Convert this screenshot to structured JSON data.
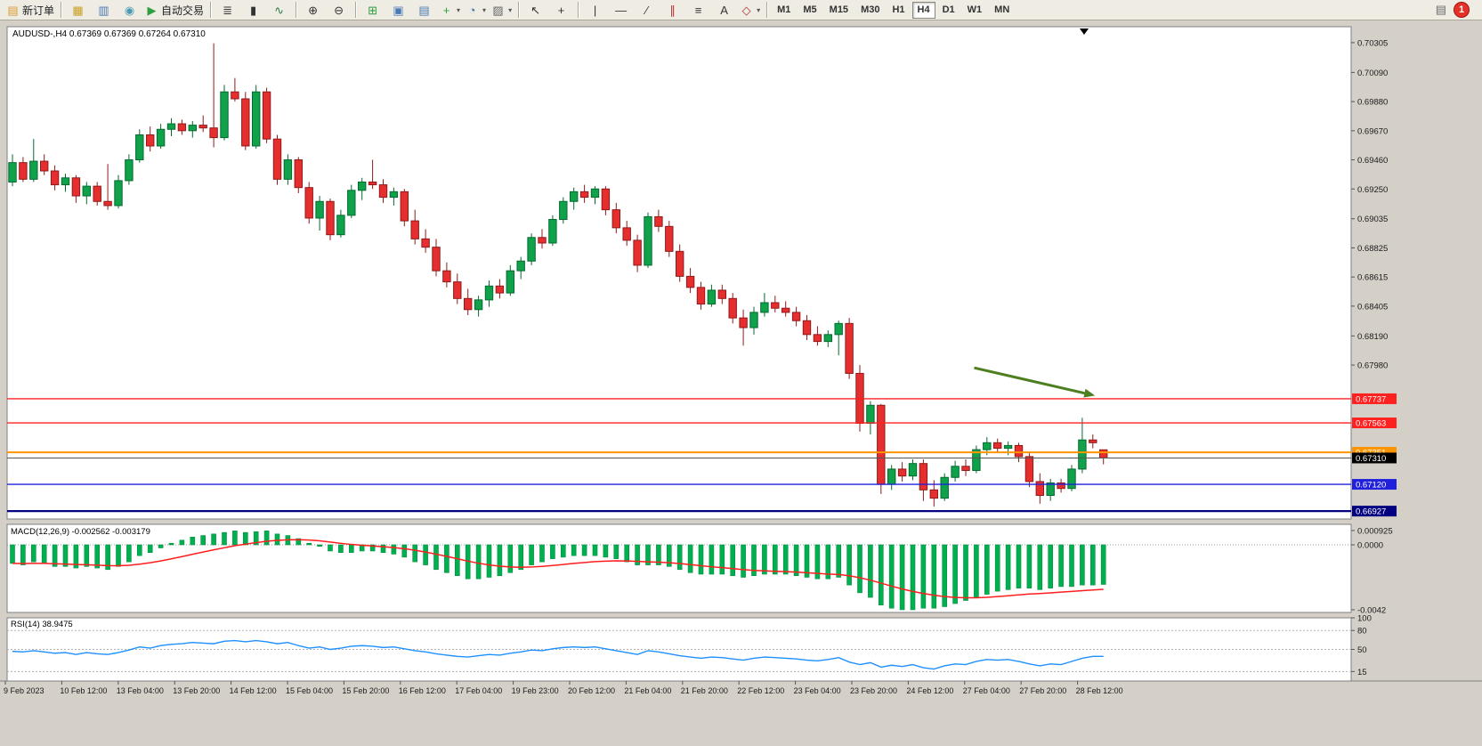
{
  "window": {
    "bg": "#d4d0c8",
    "toolbar_bg": "#efece4"
  },
  "toolbar": {
    "items": [
      {
        "name": "new-order-button",
        "glyph": "▤",
        "glyph_color": "#d89b2c",
        "label": "新订单"
      },
      {
        "sep": true
      },
      {
        "name": "new-chart-button",
        "glyph": "▦",
        "glyph_color": "#c8a020"
      },
      {
        "name": "profiles-button",
        "glyph": "▥",
        "glyph_color": "#4a7ab5"
      },
      {
        "name": "navigator-button",
        "glyph": "◉",
        "glyph_color": "#4a9ab5"
      },
      {
        "name": "autotrading-button",
        "glyph": "▶",
        "glyph_color": "#2e9e3f",
        "label": "自动交易"
      },
      {
        "sep": true
      },
      {
        "name": "bar-chart-button",
        "glyph": "≣",
        "glyph_color": "#333333"
      },
      {
        "name": "candlestick-chart-button",
        "glyph": "▮",
        "glyph_color": "#333333"
      },
      {
        "name": "line-chart-button",
        "glyph": "∿",
        "glyph_color": "#2d7d46"
      },
      {
        "sep": true
      },
      {
        "name": "zoom-in-button",
        "glyph": "⊕",
        "glyph_color": "#333333"
      },
      {
        "name": "zoom-out-button",
        "glyph": "⊖",
        "glyph_color": "#333333"
      },
      {
        "sep": true
      },
      {
        "name": "tile-windows-button",
        "glyph": "⊞",
        "glyph_color": "#2e9e3f"
      },
      {
        "name": "cascade-windows-button",
        "glyph": "▣",
        "glyph_color": "#4a7ab5"
      },
      {
        "name": "arrange-windows-button",
        "glyph": "▤",
        "glyph_color": "#4a7ab5"
      },
      {
        "name": "indicators-button",
        "glyph": "+",
        "glyph_color": "#2e9e3f",
        "dropdown": true
      },
      {
        "name": "periods-button",
        "glyph": "◔",
        "glyph_color": "#3a6ea5",
        "dropdown": true
      },
      {
        "name": "templates-button",
        "glyph": "▨",
        "glyph_color": "#666666",
        "dropdown": true
      },
      {
        "sep": true
      },
      {
        "name": "cursor-button",
        "glyph": "↖",
        "glyph_color": "#333333"
      },
      {
        "name": "crosshair-button",
        "glyph": "+",
        "glyph_color": "#333333"
      },
      {
        "sep": true
      },
      {
        "name": "vertical-line-button",
        "glyph": "|",
        "glyph_color": "#333333"
      },
      {
        "name": "horizontal-line-button",
        "glyph": "—",
        "glyph_color": "#333333"
      },
      {
        "name": "trendline-button",
        "glyph": "∕",
        "glyph_color": "#333333"
      },
      {
        "name": "channel-button",
        "glyph": "∥",
        "glyph_color": "#b03030"
      },
      {
        "name": "fibonacci-button",
        "glyph": "≡",
        "glyph_color": "#333333"
      },
      {
        "name": "text-button",
        "glyph": "A",
        "glyph_color": "#333333"
      },
      {
        "name": "arrows-button",
        "glyph": "◇",
        "glyph_color": "#b03030",
        "dropdown": true
      },
      {
        "sep": true
      }
    ],
    "timeframes": [
      "M1",
      "M5",
      "M15",
      "M30",
      "H1",
      "H4",
      "D1",
      "W1",
      "MN"
    ],
    "active_timeframe": "H4",
    "right_icon_glyph": "▤",
    "notification_count": "1"
  },
  "chart": {
    "header": "AUDUSD-,H4  0.67369 0.67369 0.67264 0.67310",
    "macd_label": "MACD(12,26,9) -0.002562 -0.003179",
    "rsi_label": "RSI(14) 38.9475"
  },
  "chart_data": {
    "type": "candlestick",
    "symbol": "AUDUSD-",
    "timeframe": "H4",
    "ohlc_current": {
      "open": 0.67369,
      "high": 0.67369,
      "low": 0.67264,
      "close": 0.6731
    },
    "ylim": [
      0.6687,
      0.7042
    ],
    "price_axis_ticks": [
      "0.70305",
      "0.70090",
      "0.69880",
      "0.69670",
      "0.69460",
      "0.69250",
      "0.69035",
      "0.68825",
      "0.68615",
      "0.68405",
      "0.68190",
      "0.67980"
    ],
    "hlines": [
      {
        "price": 0.67737,
        "label": "0.67737",
        "color": "#ff2020",
        "box_bg": "#ff2020",
        "width": 1.4
      },
      {
        "price": 0.67563,
        "label": "0.67563",
        "color": "#ff2020",
        "box_bg": "#ff2020",
        "width": 1.4
      },
      {
        "price": 0.67351,
        "label": "0.67351",
        "color": "#ff9400",
        "box_bg": "#ff9400",
        "width": 2
      },
      {
        "price": 0.6731,
        "label": "0.67310",
        "color": "#555555",
        "box_bg": "#000000",
        "width": 1
      },
      {
        "price": 0.6712,
        "label": "0.67120",
        "color": "#2020dd",
        "box_bg": "#2020dd",
        "width": 1.4
      },
      {
        "price": 0.66927,
        "label": "0.66927",
        "color": "#000080",
        "box_bg": "#000080",
        "width": 2.2
      }
    ],
    "candles": [
      [
        0.693,
        0.695,
        0.6927,
        0.6944
      ],
      [
        0.6944,
        0.6948,
        0.693,
        0.6932
      ],
      [
        0.6932,
        0.6961,
        0.693,
        0.6945
      ],
      [
        0.6945,
        0.695,
        0.6935,
        0.6938
      ],
      [
        0.6938,
        0.6942,
        0.6924,
        0.6928
      ],
      [
        0.6928,
        0.6936,
        0.6923,
        0.6933
      ],
      [
        0.6933,
        0.6935,
        0.6915,
        0.692
      ],
      [
        0.692,
        0.693,
        0.6914,
        0.6927
      ],
      [
        0.6927,
        0.693,
        0.6913,
        0.6916
      ],
      [
        0.6916,
        0.6943,
        0.691,
        0.6913
      ],
      [
        0.6913,
        0.6935,
        0.6911,
        0.6931
      ],
      [
        0.6931,
        0.695,
        0.6928,
        0.6946
      ],
      [
        0.6946,
        0.6968,
        0.6944,
        0.6964
      ],
      [
        0.6964,
        0.697,
        0.6952,
        0.6956
      ],
      [
        0.6956,
        0.6972,
        0.6954,
        0.6968
      ],
      [
        0.6968,
        0.6976,
        0.6963,
        0.6972
      ],
      [
        0.6972,
        0.6975,
        0.6964,
        0.6967
      ],
      [
        0.6967,
        0.6974,
        0.6962,
        0.6971
      ],
      [
        0.6971,
        0.6978,
        0.6966,
        0.6969
      ],
      [
        0.6969,
        0.703,
        0.6955,
        0.6962
      ],
      [
        0.6962,
        0.7,
        0.696,
        0.6995
      ],
      [
        0.6995,
        0.7005,
        0.6988,
        0.699
      ],
      [
        0.699,
        0.6995,
        0.6953,
        0.6956
      ],
      [
        0.6956,
        0.7,
        0.6954,
        0.6995
      ],
      [
        0.6995,
        0.6998,
        0.6958,
        0.6961
      ],
      [
        0.6961,
        0.6964,
        0.6928,
        0.6932
      ],
      [
        0.6932,
        0.695,
        0.6928,
        0.6946
      ],
      [
        0.6946,
        0.6948,
        0.6922,
        0.6926
      ],
      [
        0.6926,
        0.693,
        0.69,
        0.6904
      ],
      [
        0.6904,
        0.692,
        0.6895,
        0.6916
      ],
      [
        0.6916,
        0.6918,
        0.6888,
        0.6892
      ],
      [
        0.6892,
        0.691,
        0.689,
        0.6906
      ],
      [
        0.6906,
        0.6928,
        0.6904,
        0.6924
      ],
      [
        0.6924,
        0.6933,
        0.6917,
        0.693
      ],
      [
        0.693,
        0.6946,
        0.6925,
        0.6928
      ],
      [
        0.6928,
        0.6932,
        0.6915,
        0.6919
      ],
      [
        0.6919,
        0.6926,
        0.6913,
        0.6923
      ],
      [
        0.6923,
        0.6925,
        0.6898,
        0.6902
      ],
      [
        0.6902,
        0.691,
        0.6885,
        0.6889
      ],
      [
        0.6889,
        0.6896,
        0.6879,
        0.6883
      ],
      [
        0.6883,
        0.6889,
        0.6862,
        0.6866
      ],
      [
        0.6866,
        0.6872,
        0.6854,
        0.6858
      ],
      [
        0.6858,
        0.6864,
        0.6842,
        0.6846
      ],
      [
        0.6846,
        0.6853,
        0.6834,
        0.6838
      ],
      [
        0.6838,
        0.6848,
        0.6833,
        0.6845
      ],
      [
        0.6845,
        0.6859,
        0.684,
        0.6855
      ],
      [
        0.6855,
        0.686,
        0.6846,
        0.685
      ],
      [
        0.685,
        0.687,
        0.6848,
        0.6866
      ],
      [
        0.6866,
        0.6876,
        0.686,
        0.6873
      ],
      [
        0.6873,
        0.6893,
        0.687,
        0.689
      ],
      [
        0.689,
        0.6896,
        0.6882,
        0.6886
      ],
      [
        0.6886,
        0.6906,
        0.6884,
        0.6903
      ],
      [
        0.6903,
        0.6919,
        0.69,
        0.6916
      ],
      [
        0.6916,
        0.6926,
        0.691,
        0.6923
      ],
      [
        0.6923,
        0.6928,
        0.6915,
        0.6919
      ],
      [
        0.6919,
        0.6927,
        0.6914,
        0.6925
      ],
      [
        0.6925,
        0.6927,
        0.6906,
        0.691
      ],
      [
        0.691,
        0.6915,
        0.6893,
        0.6897
      ],
      [
        0.6897,
        0.6902,
        0.6884,
        0.6888
      ],
      [
        0.6888,
        0.6892,
        0.6865,
        0.687
      ],
      [
        0.687,
        0.6908,
        0.6868,
        0.6905
      ],
      [
        0.6905,
        0.691,
        0.6894,
        0.6898
      ],
      [
        0.6898,
        0.6902,
        0.6876,
        0.688
      ],
      [
        0.688,
        0.6885,
        0.6858,
        0.6862
      ],
      [
        0.6862,
        0.6868,
        0.685,
        0.6854
      ],
      [
        0.6854,
        0.6858,
        0.6838,
        0.6842
      ],
      [
        0.6842,
        0.6856,
        0.684,
        0.6852
      ],
      [
        0.6852,
        0.6856,
        0.6842,
        0.6846
      ],
      [
        0.6846,
        0.685,
        0.6828,
        0.6832
      ],
      [
        0.6832,
        0.6838,
        0.6812,
        0.6825
      ],
      [
        0.6825,
        0.684,
        0.682,
        0.6836
      ],
      [
        0.6836,
        0.685,
        0.6833,
        0.6843
      ],
      [
        0.6843,
        0.6848,
        0.6836,
        0.6839
      ],
      [
        0.6839,
        0.6844,
        0.6833,
        0.6836
      ],
      [
        0.6836,
        0.684,
        0.6826,
        0.683
      ],
      [
        0.683,
        0.6834,
        0.6816,
        0.682
      ],
      [
        0.682,
        0.6826,
        0.6812,
        0.6815
      ],
      [
        0.6815,
        0.6823,
        0.6811,
        0.682
      ],
      [
        0.682,
        0.683,
        0.6805,
        0.6828
      ],
      [
        0.6828,
        0.6832,
        0.6788,
        0.6792
      ],
      [
        0.6792,
        0.6798,
        0.675,
        0.6756
      ],
      [
        0.6756,
        0.6772,
        0.6748,
        0.6769
      ],
      [
        0.6769,
        0.677,
        0.6705,
        0.6712
      ],
      [
        0.6712,
        0.6726,
        0.6708,
        0.6723
      ],
      [
        0.6723,
        0.6728,
        0.6714,
        0.6718
      ],
      [
        0.6718,
        0.673,
        0.6715,
        0.6727
      ],
      [
        0.6727,
        0.673,
        0.67,
        0.6708
      ],
      [
        0.6708,
        0.6715,
        0.6696,
        0.6702
      ],
      [
        0.6702,
        0.672,
        0.67,
        0.6717
      ],
      [
        0.6717,
        0.6729,
        0.6714,
        0.6725
      ],
      [
        0.6725,
        0.673,
        0.6718,
        0.6722
      ],
      [
        0.6722,
        0.674,
        0.672,
        0.6737
      ],
      [
        0.6737,
        0.6746,
        0.6733,
        0.6742
      ],
      [
        0.6742,
        0.6745,
        0.6735,
        0.6738
      ],
      [
        0.6738,
        0.6743,
        0.6733,
        0.674
      ],
      [
        0.674,
        0.6742,
        0.6728,
        0.6732
      ],
      [
        0.6732,
        0.6735,
        0.671,
        0.6714
      ],
      [
        0.6714,
        0.672,
        0.6698,
        0.6704
      ],
      [
        0.6704,
        0.6716,
        0.67,
        0.6713
      ],
      [
        0.6713,
        0.6716,
        0.6706,
        0.6709
      ],
      [
        0.6709,
        0.6726,
        0.6707,
        0.6723
      ],
      [
        0.6723,
        0.676,
        0.672,
        0.6744
      ],
      [
        0.6744,
        0.6748,
        0.6738,
        0.6742
      ],
      [
        0.67369,
        0.67369,
        0.67264,
        0.6731
      ]
    ],
    "macd": {
      "label": "MACD(12,26,9)",
      "main_value": -0.002562,
      "signal_value": -0.003179,
      "ticks": [
        {
          "v": 0.000925,
          "label": "0.000925"
        },
        {
          "v": 0.0,
          "label": "0.0000"
        },
        {
          "v": -0.0042,
          "label": "-0.0042"
        }
      ],
      "values": [
        -0.0012,
        -0.0013,
        -0.0011,
        -0.0012,
        -0.0014,
        -0.0014,
        -0.0015,
        -0.0014,
        -0.0015,
        -0.0016,
        -0.0014,
        -0.0011,
        -0.0007,
        -0.0005,
        -0.0002,
        0.0001,
        0.0003,
        0.0005,
        0.0006,
        0.0007,
        0.0008,
        0.0009,
        0.0008,
        0.00085,
        0.0009,
        0.0007,
        0.0006,
        0.0004,
        0.0001,
        -0.0001,
        -0.0004,
        -0.0005,
        -0.0005,
        -0.0004,
        -0.0004,
        -0.0005,
        -0.0006,
        -0.0008,
        -0.0011,
        -0.0013,
        -0.0016,
        -0.0018,
        -0.002,
        -0.0022,
        -0.0022,
        -0.0021,
        -0.002,
        -0.0018,
        -0.0016,
        -0.0013,
        -0.0011,
        -0.0009,
        -0.0008,
        -0.0007,
        -0.0007,
        -0.0007,
        -0.0008,
        -0.0009,
        -0.0011,
        -0.0013,
        -0.0013,
        -0.0013,
        -0.0014,
        -0.0016,
        -0.0018,
        -0.0019,
        -0.0019,
        -0.0019,
        -0.002,
        -0.0021,
        -0.002,
        -0.0019,
        -0.0019,
        -0.0019,
        -0.002,
        -0.0021,
        -0.0022,
        -0.0022,
        -0.0021,
        -0.0026,
        -0.0031,
        -0.0034,
        -0.0039,
        -0.0041,
        -0.0042,
        -0.0042,
        -0.0041,
        -0.0041,
        -0.004,
        -0.0038,
        -0.0036,
        -0.0034,
        -0.0032,
        -0.003,
        -0.0029,
        -0.0028,
        -0.0028,
        -0.0029,
        -0.0028,
        -0.0027,
        -0.0027,
        -0.0026,
        -0.0026,
        -0.002562
      ]
    },
    "rsi": {
      "label": "RSI(14)",
      "current": 38.9475,
      "levels": [
        80,
        50,
        15
      ],
      "ticks": [
        "100",
        "80",
        "50",
        "15"
      ],
      "values": [
        47,
        46,
        48,
        46,
        44,
        45,
        42,
        45,
        43,
        42,
        45,
        49,
        54,
        52,
        56,
        58,
        59,
        61,
        60,
        59,
        63,
        64,
        62,
        64,
        62,
        59,
        61,
        56,
        52,
        54,
        50,
        52,
        55,
        56,
        55,
        53,
        54,
        51,
        48,
        46,
        43,
        41,
        39,
        38,
        40,
        42,
        41,
        44,
        46,
        49,
        48,
        51,
        53,
        54,
        53,
        54,
        51,
        48,
        45,
        42,
        48,
        46,
        43,
        40,
        38,
        36,
        38,
        37,
        35,
        33,
        36,
        38,
        37,
        36,
        35,
        33,
        32,
        34,
        37,
        30,
        26,
        29,
        22,
        25,
        23,
        26,
        21,
        19,
        24,
        27,
        26,
        31,
        34,
        33,
        34,
        31,
        27,
        24,
        27,
        26,
        31,
        36,
        39,
        38.9475
      ]
    },
    "time_labels": [
      "9 Feb 2023",
      "10 Feb 12:00",
      "13 Feb 04:00",
      "13 Feb 20:00",
      "14 Feb 12:00",
      "15 Feb 04:00",
      "15 Feb 20:00",
      "16 Feb 12:00",
      "17 Feb 04:00",
      "19 Feb 23:00",
      "20 Feb 12:00",
      "21 Feb 04:00",
      "21 Feb 20:00",
      "22 Feb 12:00",
      "23 Feb 04:00",
      "23 Feb 20:00",
      "24 Feb 12:00",
      "27 Feb 04:00",
      "27 Feb 20:00",
      "28 Feb 12:00"
    ],
    "annotation_arrow": {
      "i1": 90.8,
      "p1": 0.6796,
      "i2": 102.2,
      "p2": 0.6776,
      "color": "#4d7e1f"
    },
    "colors": {
      "bull_fill": "#0fa24b",
      "bull_stroke": "#056a30",
      "bear_fill": "#e62e2e",
      "bear_stroke": "#8f1a1a",
      "macd_bar": "#00b050",
      "macd_bar_stroke": "#008f3c",
      "macd_signal": "#ff1e1e",
      "rsi_line": "#1E90FF",
      "panel_border": "#7f7f7f",
      "axis_text": "#1a1a1a",
      "level_dash": "#b0b0b0"
    }
  }
}
